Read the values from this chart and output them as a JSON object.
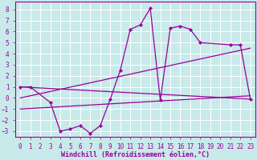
{
  "background_color": "#c8eaea",
  "grid_color": "#ffffff",
  "line_color": "#990099",
  "xlabel": "Windchill (Refroidissement éolien,°C)",
  "xlim": [
    -0.5,
    23.5
  ],
  "ylim": [
    -3.5,
    8.7
  ],
  "xticks": [
    0,
    1,
    2,
    3,
    4,
    5,
    6,
    7,
    8,
    9,
    10,
    11,
    12,
    13,
    14,
    15,
    16,
    17,
    18,
    19,
    20,
    21,
    22,
    23
  ],
  "yticks": [
    -3,
    -2,
    -1,
    0,
    1,
    2,
    3,
    4,
    5,
    6,
    7,
    8
  ],
  "s1_x": [
    0,
    1,
    3,
    4,
    5,
    6,
    7,
    8,
    9,
    10,
    11,
    12,
    13,
    14,
    15,
    16,
    17,
    18,
    21,
    22,
    23
  ],
  "s1_y": [
    1.0,
    1.0,
    -0.4,
    -3.0,
    -2.8,
    -2.5,
    -3.2,
    -2.5,
    -0.1,
    2.5,
    6.2,
    6.6,
    8.1,
    -0.2,
    6.3,
    6.5,
    6.2,
    5.0,
    4.8,
    4.8,
    -0.1
  ],
  "line1_x": [
    0,
    23
  ],
  "line1_y": [
    1.0,
    -0.1
  ],
  "line2_x": [
    0,
    23
  ],
  "line2_y": [
    -1.0,
    0.2
  ],
  "line3_x": [
    0,
    23
  ],
  "line3_y": [
    0.0,
    4.5
  ],
  "font_size_label": 6,
  "font_size_tick": 5.5
}
